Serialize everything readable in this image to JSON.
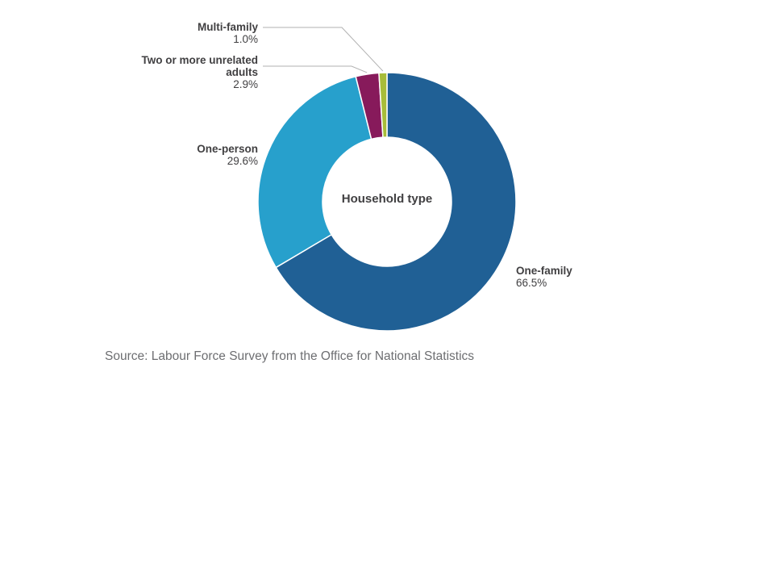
{
  "chart_data": {
    "type": "pie",
    "variant": "donut",
    "center_label": "Household type",
    "categories": [
      "One-family",
      "One-person",
      "Two or more unrelated adults",
      "Multi-family"
    ],
    "values": [
      66.5,
      29.6,
      2.9,
      1.0
    ],
    "value_labels": [
      "66.5%",
      "29.6%",
      "2.9%",
      "1.0%"
    ],
    "colors": [
      "#206095",
      "#27a0cc",
      "#871a5b",
      "#a8bd3a"
    ],
    "start": "12 o'clock, clockwise order: Multi-family? no — One-family first",
    "legend": "none (direct labels)"
  },
  "source": "Source: Labour Force Survey from the Office for National Statistics"
}
